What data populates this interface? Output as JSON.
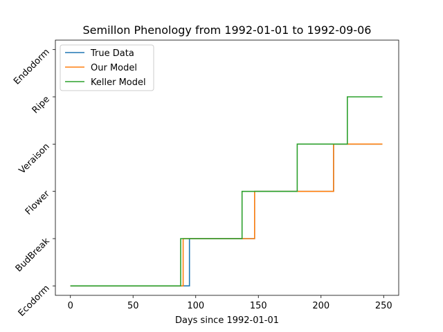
{
  "chart_data": {
    "type": "line",
    "title": "Semillon Phenology from 1992-01-01 to 1992-09-06",
    "xlabel": "Days since 1992-01-01",
    "ylabel": "",
    "xlim": [
      -12,
      262
    ],
    "ylim": [
      -0.2,
      5.2
    ],
    "x_ticks": [
      0,
      50,
      100,
      150,
      200,
      250
    ],
    "y_categories": [
      "Ecodorm",
      "BudBreak",
      "Flower",
      "Veraison",
      "Ripe",
      "Endodorm"
    ],
    "grid": false,
    "legend": "upper-left",
    "series": [
      {
        "name": "True Data",
        "color": "#1f77b4",
        "x": [
          0,
          95,
          95,
          147,
          147,
          210,
          210,
          249
        ],
        "y": [
          0,
          0,
          1,
          1,
          2,
          2,
          3,
          3
        ]
      },
      {
        "name": "Our Model",
        "color": "#ff7f0e",
        "x": [
          0,
          90,
          90,
          147,
          147,
          210,
          210,
          249
        ],
        "y": [
          0,
          0,
          1,
          1,
          2,
          2,
          3,
          3
        ]
      },
      {
        "name": "Keller Model",
        "color": "#2ca02c",
        "x": [
          0,
          88,
          88,
          137,
          137,
          181,
          181,
          221,
          221,
          249
        ],
        "y": [
          0,
          0,
          1,
          1,
          2,
          2,
          3,
          3,
          4,
          4
        ]
      }
    ]
  }
}
